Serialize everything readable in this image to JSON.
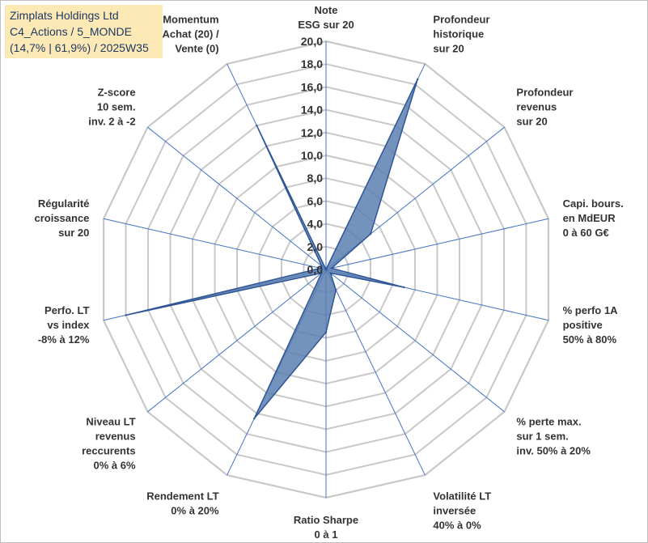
{
  "header": {
    "line1": "Zimplats Holdings Ltd",
    "line2": "C4_Actions / 5_MONDE",
    "line3": "(14,7% | 61,9%) / 2025W35"
  },
  "chart_data": {
    "type": "radar",
    "axes": [
      [
        "Note",
        "ESG sur 20"
      ],
      [
        "Profondeur",
        "historique",
        "sur 20"
      ],
      [
        "Profondeur",
        "revenus",
        "sur 20"
      ],
      [
        "Capi. bours.",
        "en MdEUR",
        "0 à 60 G€"
      ],
      [
        "% perfo 1A",
        "positive",
        "50% à 80%"
      ],
      [
        "% perte max.",
        "sur 1 sem.",
        "inv. 50% à 20%"
      ],
      [
        "Volatilité LT",
        "inversée",
        "40% à 0%"
      ],
      [
        "Ratio Sharpe",
        "0 à 1"
      ],
      [
        "Rendement LT",
        "0% à 20%"
      ],
      [
        "Niveau LT",
        "revenus",
        "reccurents",
        "0% à 6%"
      ],
      [
        "Perfo. LT",
        "vs index",
        "-8% à 12%"
      ],
      [
        "Régularité",
        "croissance",
        "sur 20"
      ],
      [
        "Z-score",
        "10 sem.",
        "inv. 2 à -2"
      ],
      [
        "Momentum",
        "Achat (20) /",
        "Vente (0)"
      ]
    ],
    "values": [
      0,
      18.5,
      5.0,
      0.5,
      7.0,
      0.5,
      2.0,
      5.5,
      14.5,
      0.5,
      18.0,
      0.5,
      0.5,
      14.0
    ],
    "ylim": [
      0,
      20
    ],
    "tick_labels": [
      "0,0",
      "2,0",
      "4,0",
      "6,0",
      "8,0",
      "10,0",
      "12,0",
      "14,0",
      "16,0",
      "18,0",
      "20,0"
    ],
    "grid": true,
    "colors": {
      "fill": "#5b7fb0",
      "line": "#2f5597",
      "grid": "#c8c8c8",
      "spoke": "#4472c4"
    }
  }
}
